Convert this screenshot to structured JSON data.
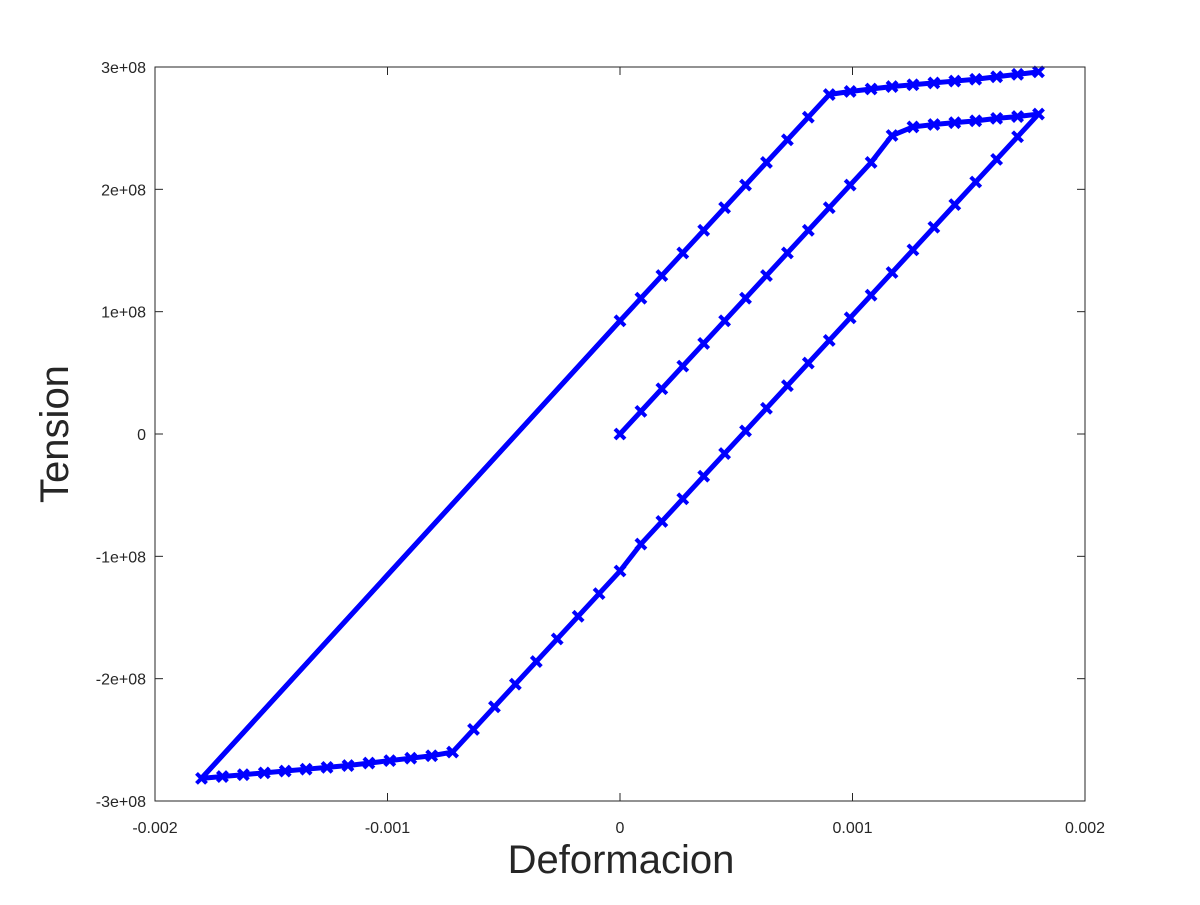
{
  "chart_data": {
    "type": "line",
    "title": "",
    "xlabel": "Deformacion",
    "ylabel": "Tension",
    "xlim": [
      -0.002,
      0.002
    ],
    "ylim": [
      -300000000,
      300000000
    ],
    "grid": false,
    "box": true,
    "x_ticks": [
      -0.002,
      -0.001,
      0,
      0.001,
      0.002
    ],
    "x_tick_labels": [
      "-0.002",
      "-0.001",
      "0",
      "0.001",
      "0.002"
    ],
    "y_ticks": [
      -300000000,
      -200000000,
      -100000000,
      0,
      100000000,
      200000000,
      300000000
    ],
    "y_tick_labels": [
      "-3e+08",
      "-2e+08",
      "-1e+08",
      "0",
      "1e+08",
      "2e+08",
      "3e+08"
    ],
    "colors": {
      "series": "#0000ff",
      "axes": "#262626",
      "background": "#ffffff"
    },
    "series": [
      {
        "marker": "x",
        "x": [
          0,
          9e-05,
          0.00018,
          0.00027,
          0.00036,
          0.00045,
          0.00054,
          0.00063,
          0.00072,
          0.00081,
          0.0009,
          0.00099,
          0.00108,
          0.00117,
          0.00126,
          0.00135,
          0.00144,
          0.00153,
          0.00162,
          0.00171,
          0.0018,
          0.00171,
          0.00162,
          0.00153,
          0.00144,
          0.00135,
          0.00126,
          0.00117,
          0.00108,
          0.00099,
          0.0009,
          0.00081,
          0.00072,
          0.00063,
          0.00054,
          0.00045,
          0.00036,
          0.00027,
          0.00018,
          9e-05,
          0,
          -9e-05,
          -0.00018,
          -0.00027,
          -0.00036,
          -0.00045,
          -0.00054,
          -0.00063,
          -0.00072,
          -0.00081,
          -0.0009,
          -0.00099,
          -0.00108,
          -0.00117,
          -0.00126,
          -0.00135,
          -0.00144,
          -0.00153,
          -0.00162,
          -0.00171,
          -0.0018,
          0,
          9e-05,
          0.00018,
          0.00027,
          0.00036,
          0.00045,
          0.00054,
          0.00063,
          0.00072,
          0.00081,
          0.0009,
          0.00099,
          0.00108,
          0.00117,
          0.00126,
          0.00135,
          0.00144,
          0.00153,
          0.00162,
          0.00171,
          0.0018
        ],
        "y": [
          0,
          18500000,
          37000000,
          55500000,
          74000000,
          92500000,
          111000000,
          129500000,
          148000000,
          166500000,
          185000000,
          203500000,
          222000000,
          244000000,
          251000000,
          253000000,
          254500000,
          256000000,
          258000000,
          259500000,
          261500000,
          243000000,
          224500000,
          206000000,
          187500000,
          169000000,
          150500000,
          132000000,
          113500000,
          95000000,
          76500000,
          58000000,
          39500000,
          21000000,
          2500000,
          -16000000,
          -34500000,
          -53000000,
          -71500000,
          -90000000,
          -112000000,
          -130500000,
          -149000000,
          -167500000,
          -186000000,
          -204500000,
          -223000000,
          -241500000,
          -260000000,
          -263000000,
          -265000000,
          -267000000,
          -269000000,
          -271000000,
          -272500000,
          -274000000,
          -275500000,
          -277000000,
          -278500000,
          -280000000,
          -281500000,
          92500000,
          111000000,
          129500000,
          148000000,
          166500000,
          185000000,
          203500000,
          222000000,
          240500000,
          259000000,
          277500000,
          280000000,
          282000000,
          284000000,
          285500000,
          287000000,
          288500000,
          290000000,
          292000000,
          294000000,
          296000000
        ]
      }
    ],
    "segments_without_markers": [
      [
        -0.0018,
        -281500000,
        0,
        92500000
      ]
    ]
  }
}
